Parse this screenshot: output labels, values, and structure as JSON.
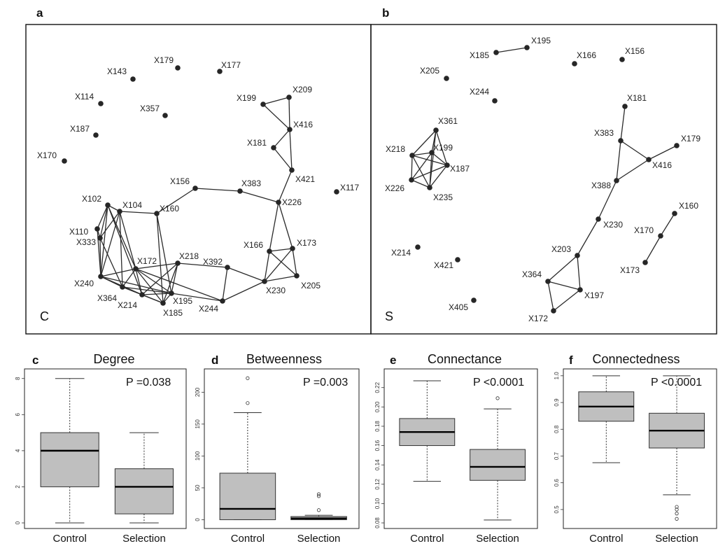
{
  "figure": {
    "network_panels": [
      {
        "letter": "a",
        "corner": "C",
        "nodes": [
          [
            "X143"
          ],
          [
            "X179"
          ],
          [
            "X177"
          ],
          [
            "X114"
          ],
          [
            "X357"
          ],
          [
            "X187"
          ],
          [
            "X170"
          ],
          [
            "X199"
          ],
          [
            "X209"
          ],
          [
            "X416"
          ],
          [
            "X181"
          ],
          [
            "X421"
          ],
          [
            "X117"
          ],
          [
            "X156"
          ],
          [
            "X383"
          ],
          [
            "X226"
          ],
          [
            "X102"
          ],
          [
            "X104"
          ],
          [
            "X160"
          ],
          [
            "X110"
          ],
          [
            "X333"
          ],
          [
            "X172"
          ],
          [
            "X218"
          ],
          [
            "X392"
          ],
          [
            "X166"
          ],
          [
            "X173"
          ],
          [
            "X240"
          ],
          [
            "X364"
          ],
          [
            "X214"
          ],
          [
            "X195"
          ],
          [
            "X185"
          ],
          [
            "X244"
          ],
          [
            "X230"
          ],
          [
            "X205"
          ]
        ],
        "edges": [
          [
            "X199",
            "X209"
          ],
          [
            "X199",
            "X416"
          ],
          [
            "X209",
            "X416"
          ],
          [
            "X416",
            "X181"
          ],
          [
            "X181",
            "X421"
          ],
          [
            "X416",
            "X421"
          ],
          [
            "X421",
            "X226"
          ],
          [
            "X156",
            "X160"
          ],
          [
            "X156",
            "X383"
          ],
          [
            "X383",
            "X226"
          ],
          [
            "X226",
            "X166"
          ],
          [
            "X226",
            "X173"
          ],
          [
            "X166",
            "X173"
          ],
          [
            "X166",
            "X230"
          ],
          [
            "X166",
            "X205"
          ],
          [
            "X173",
            "X205"
          ],
          [
            "X173",
            "X230"
          ],
          [
            "X230",
            "X205"
          ],
          [
            "X392",
            "X230"
          ],
          [
            "X392",
            "X244"
          ],
          [
            "X218",
            "X392"
          ],
          [
            "X102",
            "X104"
          ],
          [
            "X102",
            "X333"
          ],
          [
            "X102",
            "X110"
          ],
          [
            "X102",
            "X240"
          ],
          [
            "X102",
            "X172"
          ],
          [
            "X102",
            "X214"
          ],
          [
            "X104",
            "X160"
          ],
          [
            "X104",
            "X333"
          ],
          [
            "X104",
            "X240"
          ],
          [
            "X104",
            "X172"
          ],
          [
            "X104",
            "X364"
          ],
          [
            "X160",
            "X195"
          ],
          [
            "X160",
            "X185"
          ],
          [
            "X110",
            "X333"
          ],
          [
            "X110",
            "X240"
          ],
          [
            "X333",
            "X240"
          ],
          [
            "X333",
            "X364"
          ],
          [
            "X240",
            "X364"
          ],
          [
            "X240",
            "X214"
          ],
          [
            "X240",
            "X172"
          ],
          [
            "X240",
            "X195"
          ],
          [
            "X364",
            "X214"
          ],
          [
            "X364",
            "X172"
          ],
          [
            "X364",
            "X185"
          ],
          [
            "X364",
            "X195"
          ],
          [
            "X214",
            "X172"
          ],
          [
            "X214",
            "X185"
          ],
          [
            "X214",
            "X195"
          ],
          [
            "X172",
            "X185"
          ],
          [
            "X172",
            "X195"
          ],
          [
            "X172",
            "X218"
          ],
          [
            "X185",
            "X195"
          ],
          [
            "X185",
            "X218"
          ],
          [
            "X195",
            "X218"
          ],
          [
            "X172",
            "X244"
          ],
          [
            "X195",
            "X244"
          ],
          [
            "X214",
            "X218"
          ],
          [
            "X244",
            "X230"
          ]
        ]
      },
      {
        "letter": "b",
        "corner": "S",
        "nodes": [
          [
            "X195"
          ],
          [
            "X185"
          ],
          [
            "X166"
          ],
          [
            "X156"
          ],
          [
            "X205"
          ],
          [
            "X244"
          ],
          [
            "X181"
          ],
          [
            "X361"
          ],
          [
            "X218"
          ],
          [
            "X199"
          ],
          [
            "X187"
          ],
          [
            "X226"
          ],
          [
            "X235"
          ],
          [
            "X383"
          ],
          [
            "X179"
          ],
          [
            "X416"
          ],
          [
            "X388"
          ],
          [
            "X230"
          ],
          [
            "X160"
          ],
          [
            "X170"
          ],
          [
            "X214"
          ],
          [
            "X421"
          ],
          [
            "X203"
          ],
          [
            "X173"
          ],
          [
            "X364"
          ],
          [
            "X197"
          ],
          [
            "X405"
          ],
          [
            "X172"
          ]
        ],
        "edges": [
          [
            "X185",
            "X195"
          ],
          [
            "X361",
            "X218"
          ],
          [
            "X361",
            "X199"
          ],
          [
            "X361",
            "X187"
          ],
          [
            "X361",
            "X235"
          ],
          [
            "X218",
            "X199"
          ],
          [
            "X218",
            "X187"
          ],
          [
            "X218",
            "X226"
          ],
          [
            "X218",
            "X235"
          ],
          [
            "X199",
            "X187"
          ],
          [
            "X199",
            "X226"
          ],
          [
            "X199",
            "X235"
          ],
          [
            "X187",
            "X226"
          ],
          [
            "X187",
            "X235"
          ],
          [
            "X226",
            "X235"
          ],
          [
            "X181",
            "X383"
          ],
          [
            "X383",
            "X416"
          ],
          [
            "X383",
            "X388"
          ],
          [
            "X416",
            "X179"
          ],
          [
            "X416",
            "X388"
          ],
          [
            "X388",
            "X230"
          ],
          [
            "X230",
            "X203"
          ],
          [
            "X203",
            "X364"
          ],
          [
            "X203",
            "X197"
          ],
          [
            "X364",
            "X197"
          ],
          [
            "X364",
            "X172"
          ],
          [
            "X197",
            "X172"
          ],
          [
            "X160",
            "X170"
          ],
          [
            "X170",
            "X173"
          ]
        ]
      }
    ],
    "box_panels": [
      {
        "letter": "c",
        "title": "Degree",
        "pvalue": "P =0.038",
        "ylim": [
          0,
          8.3
        ],
        "ticks": [
          "0",
          "2",
          "4",
          "6",
          "8"
        ],
        "tick_values": [
          0,
          2,
          4,
          6,
          8
        ],
        "categories": [
          "Control",
          "Selection"
        ],
        "boxes": [
          {
            "min": 0,
            "q1": 2,
            "median": 4,
            "q3": 5,
            "max": 8,
            "outliers": []
          },
          {
            "min": 0,
            "q1": 0.5,
            "median": 2,
            "q3": 3,
            "max": 5,
            "outliers": []
          }
        ]
      },
      {
        "letter": "d",
        "title": "Betweenness",
        "pvalue": "P =0.003",
        "ylim": [
          -5,
          230
        ],
        "ticks": [
          "0",
          "50",
          "100",
          "150",
          "200"
        ],
        "tick_values": [
          0,
          50,
          100,
          150,
          200
        ],
        "categories": [
          "Control",
          "Selection"
        ],
        "boxes": [
          {
            "min": 0,
            "q1": 0,
            "median": 17,
            "q3": 73,
            "max": 168,
            "outliers": [
              183,
              222
            ]
          },
          {
            "min": 0,
            "q1": 0,
            "median": 2,
            "q3": 5,
            "max": 7,
            "outliers": [
              15,
              37,
              40
            ]
          }
        ]
      },
      {
        "letter": "e",
        "title": "Connectance",
        "pvalue": "P <0.0001",
        "ylim": [
          0.08,
          0.235
        ],
        "ticks": [
          "0.08",
          "0.10",
          "0.12",
          "0.14",
          "0.16",
          "0.18",
          "0.20",
          "0.22"
        ],
        "tick_values": [
          0.08,
          0.1,
          0.12,
          0.14,
          0.16,
          0.18,
          0.2,
          0.22
        ],
        "categories": [
          "Control",
          "Selection"
        ],
        "boxes": [
          {
            "min": 0.123,
            "q1": 0.16,
            "median": 0.174,
            "q3": 0.188,
            "max": 0.227,
            "outliers": []
          },
          {
            "min": 0.083,
            "q1": 0.124,
            "median": 0.138,
            "q3": 0.156,
            "max": 0.198,
            "outliers": [
              0.209
            ]
          }
        ]
      },
      {
        "letter": "f",
        "title": "Connectedness",
        "pvalue": "P <0.0001",
        "ylim": [
          0.45,
          1.01
        ],
        "ticks": [
          "0.5",
          "0.6",
          "0.7",
          "0.8",
          "0.9",
          "1.0"
        ],
        "tick_values": [
          0.5,
          0.6,
          0.7,
          0.8,
          0.9,
          1.0
        ],
        "categories": [
          "Control",
          "Selection"
        ],
        "boxes": [
          {
            "min": 0.675,
            "q1": 0.83,
            "median": 0.885,
            "q3": 0.94,
            "max": 1.0,
            "outliers": []
          },
          {
            "min": 0.555,
            "q1": 0.73,
            "median": 0.795,
            "q3": 0.86,
            "max": 1.0,
            "outliers": [
              0.465,
              0.485,
              0.5,
              0.51
            ]
          }
        ]
      }
    ]
  },
  "chart_data": [
    {
      "type": "box",
      "title": "Degree",
      "annotation": "P =0.038",
      "categories": [
        "Control",
        "Selection"
      ],
      "ylim": [
        0,
        8.3
      ],
      "series": [
        {
          "name": "Control",
          "min": 0,
          "q1": 2,
          "median": 4,
          "q3": 5,
          "max": 8,
          "outliers": []
        },
        {
          "name": "Selection",
          "min": 0,
          "q1": 0.5,
          "median": 2,
          "q3": 3,
          "max": 5,
          "outliers": []
        }
      ]
    },
    {
      "type": "box",
      "title": "Betweenness",
      "annotation": "P =0.003",
      "categories": [
        "Control",
        "Selection"
      ],
      "ylim": [
        -5,
        230
      ],
      "series": [
        {
          "name": "Control",
          "min": 0,
          "q1": 0,
          "median": 17,
          "q3": 73,
          "max": 168,
          "outliers": [
            183,
            222
          ]
        },
        {
          "name": "Selection",
          "min": 0,
          "q1": 0,
          "median": 2,
          "q3": 5,
          "max": 7,
          "outliers": [
            15,
            37,
            40
          ]
        }
      ]
    },
    {
      "type": "box",
      "title": "Connectance",
      "annotation": "P <0.0001",
      "categories": [
        "Control",
        "Selection"
      ],
      "ylim": [
        0.08,
        0.235
      ],
      "series": [
        {
          "name": "Control",
          "min": 0.123,
          "q1": 0.16,
          "median": 0.174,
          "q3": 0.188,
          "max": 0.227,
          "outliers": []
        },
        {
          "name": "Selection",
          "min": 0.083,
          "q1": 0.124,
          "median": 0.138,
          "q3": 0.156,
          "max": 0.198,
          "outliers": [
            0.209
          ]
        }
      ]
    },
    {
      "type": "box",
      "title": "Connectedness",
      "annotation": "P <0.0001",
      "categories": [
        "Control",
        "Selection"
      ],
      "ylim": [
        0.45,
        1.01
      ],
      "series": [
        {
          "name": "Control",
          "min": 0.675,
          "q1": 0.83,
          "median": 0.885,
          "q3": 0.94,
          "max": 1.0,
          "outliers": []
        },
        {
          "name": "Selection",
          "min": 0.555,
          "q1": 0.73,
          "median": 0.795,
          "q3": 0.86,
          "max": 1.0,
          "outliers": [
            0.465,
            0.485,
            0.5,
            0.51
          ]
        }
      ]
    }
  ]
}
